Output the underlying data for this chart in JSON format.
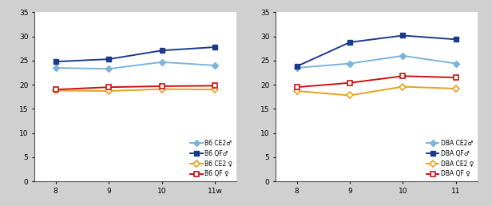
{
  "x": [
    8,
    9,
    10,
    11
  ],
  "x_labels_b6": [
    "8",
    "9",
    "10",
    "11w"
  ],
  "x_labels_dba": [
    "8",
    "9",
    "10",
    "11"
  ],
  "b6_ce2_male": [
    23.5,
    23.3,
    24.7,
    24.0
  ],
  "b6_qf_male": [
    24.8,
    25.3,
    27.1,
    27.8
  ],
  "b6_ce2_female": [
    18.8,
    18.7,
    19.1,
    19.0
  ],
  "b6_qf_female": [
    19.0,
    19.5,
    19.7,
    19.8
  ],
  "dba_ce2_male": [
    23.5,
    24.4,
    26.0,
    24.4
  ],
  "dba_qf_male": [
    23.8,
    28.8,
    30.2,
    29.4
  ],
  "dba_ce2_female": [
    18.7,
    17.8,
    19.6,
    19.2
  ],
  "dba_qf_female": [
    19.5,
    20.4,
    21.8,
    21.5
  ],
  "color_ce2_male": "#7ab4d8",
  "color_qf_male": "#1a3a8c",
  "color_ce2_female": "#e8a020",
  "color_qf_female": "#cc1111",
  "ylim": [
    0,
    35
  ],
  "yticks": [
    0,
    5,
    10,
    15,
    20,
    25,
    30,
    35
  ],
  "legend_b6": [
    "B6 CE2♂",
    "B6 QF♂",
    "B6 CE2 ♀",
    "B6 QF ♀"
  ],
  "legend_dba": [
    "DBA CE2♂",
    "DBA QF♂",
    "DBA CE2 ♀",
    "DBA QF ♀"
  ]
}
